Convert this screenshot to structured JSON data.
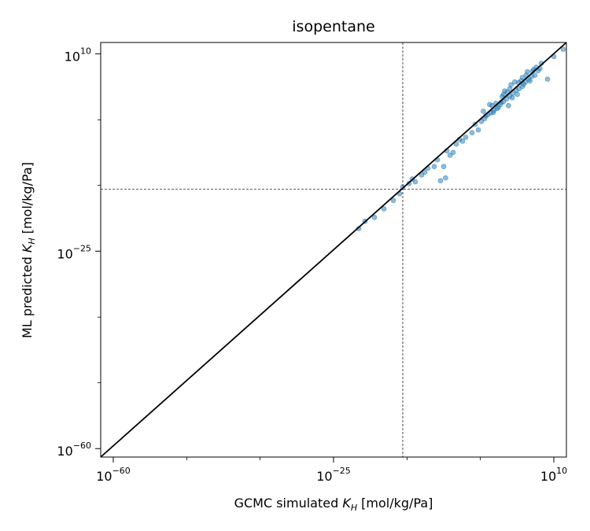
{
  "chart_data": {
    "type": "scatter",
    "title": "isopentane",
    "xlabel": {
      "prefix": "GCMC simulated ",
      "var": "K",
      "sub": "H",
      "suffix": " [mol/kg/Pa]"
    },
    "ylabel": {
      "prefix": "ML predicted ",
      "var": "K",
      "sub": "H",
      "suffix": " [mol/kg/Pa]"
    },
    "x_scale": "log",
    "y_scale": "log",
    "xlim_log10": [
      -62,
      12
    ],
    "ylim_log10": [
      -61.5,
      12
    ],
    "x_ticks": [
      {
        "base": "10",
        "exp": "−60",
        "value_log10": -60
      },
      {
        "base": "10",
        "exp": "−25",
        "value_log10": -25
      },
      {
        "base": "10",
        "exp": "10",
        "value_log10": 10
      }
    ],
    "y_ticks": [
      {
        "base": "10",
        "exp": "10",
        "value_log10": 10
      },
      {
        "base": "10",
        "exp": "−25",
        "value_log10": -25
      },
      {
        "base": "10",
        "exp": "−60",
        "value_log10": -60
      }
    ],
    "x_minor_ticks_log10": [
      -48.3,
      -36.7,
      -13.3,
      -1.7
    ],
    "y_minor_ticks_log10": [
      -48.3,
      -36.7,
      -13.3,
      -1.7
    ],
    "reference_lines": {
      "diagonal": "y = x",
      "vertical_x_log10": -14,
      "horizontal_y_log10": -14
    },
    "colors": {
      "points": "#1f77b4",
      "diagonal": "#000000",
      "dashed": "#000000"
    },
    "points_log10": [
      [
        -21,
        -21
      ],
      [
        -20,
        -19.7
      ],
      [
        -18.5,
        -19.0
      ],
      [
        -17,
        -17.5
      ],
      [
        -15.5,
        -16.0
      ],
      [
        -14.5,
        -14.8
      ],
      [
        -14,
        -13.6
      ],
      [
        -13,
        -13.0
      ],
      [
        -12.5,
        -12.2
      ],
      [
        -12,
        -12.7
      ],
      [
        -11,
        -11.5
      ],
      [
        -10.5,
        -11.0
      ],
      [
        -10,
        -10.3
      ],
      [
        -9,
        -10.0
      ],
      [
        -8.5,
        -8.8
      ],
      [
        -7.5,
        -10.0
      ],
      [
        -8,
        -12.5
      ],
      [
        -7.2,
        -12.0
      ],
      [
        -7,
        -7.2
      ],
      [
        -6,
        -7.5
      ],
      [
        -5.5,
        -6.0
      ],
      [
        -5,
        -5.2
      ],
      [
        -6.5,
        -8.0
      ],
      [
        -4.5,
        -5.5
      ],
      [
        -4,
        -4.8
      ],
      [
        -3,
        -4.0
      ],
      [
        -2.5,
        -2.5
      ],
      [
        -2,
        -3.5
      ],
      [
        -1.5,
        -2.0
      ],
      [
        -1,
        -1.5
      ],
      [
        -0.5,
        -0.8
      ],
      [
        0,
        -0.5
      ],
      [
        0.5,
        0.0
      ],
      [
        1,
        0.3
      ],
      [
        0.8,
        1.2
      ],
      [
        1.5,
        1.0
      ],
      [
        2,
        1.5
      ],
      [
        2.5,
        2.0
      ],
      [
        2,
        2.8
      ],
      [
        3,
        2.5
      ],
      [
        3.5,
        3.0
      ],
      [
        4,
        3.5
      ],
      [
        3.2,
        4.5
      ],
      [
        4.5,
        3.8
      ],
      [
        5,
        4.2
      ],
      [
        5.5,
        5.0
      ],
      [
        5,
        5.8
      ],
      [
        6,
        5.5
      ],
      [
        6.5,
        6.0
      ],
      [
        7,
        6.2
      ],
      [
        6.8,
        7.2
      ],
      [
        7.5,
        7.0
      ],
      [
        2.8,
        0.8
      ],
      [
        1.2,
        0.5
      ],
      [
        4.2,
        2.8
      ],
      [
        -0.2,
        1.0
      ],
      [
        3.8,
        5.0
      ],
      [
        5.8,
        6.8
      ],
      [
        6.2,
        5.2
      ],
      [
        2.2,
        3.4
      ],
      [
        4.8,
        5.2
      ],
      [
        5.2,
        4.6
      ],
      [
        3.4,
        2.2
      ],
      [
        1.8,
        2.4
      ],
      [
        -1.2,
        -0.2
      ],
      [
        0.2,
        0.8
      ],
      [
        2.6,
        3.2
      ],
      [
        4.4,
        4.9
      ],
      [
        6.6,
        6.9
      ],
      [
        7.2,
        7.6
      ],
      [
        5.6,
        6.2
      ],
      [
        3.0,
        3.8
      ],
      [
        1.6,
        1.4
      ],
      [
        0.4,
        -0.4
      ],
      [
        -0.8,
        -1.0
      ],
      [
        9,
        5.5
      ],
      [
        10,
        9.5
      ],
      [
        11.5,
        10.8
      ],
      [
        8.0,
        8.3
      ],
      [
        7.8,
        7.4
      ]
    ]
  }
}
